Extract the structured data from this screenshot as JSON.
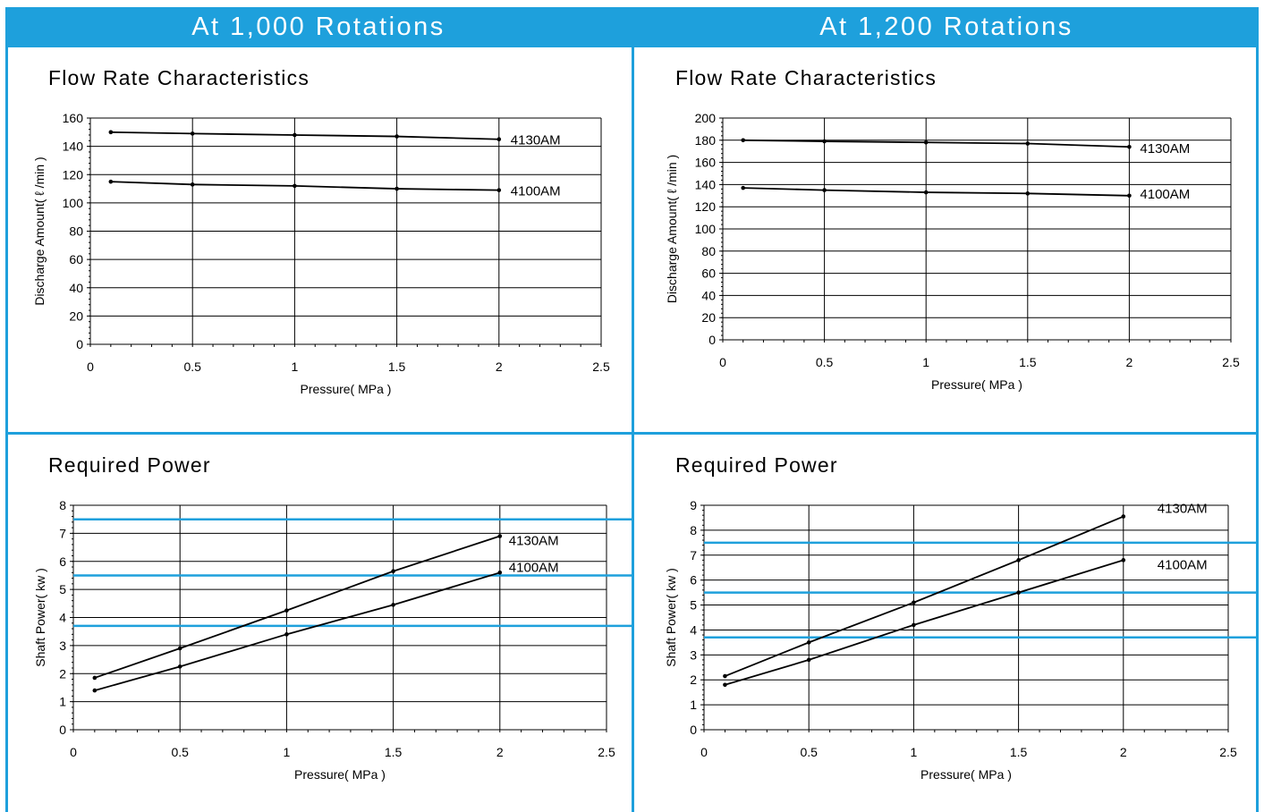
{
  "headers": {
    "left": "At 1,000 Rotations",
    "right": "At 1,200 Rotations"
  },
  "panels": [
    {
      "title": "Flow Rate Characteristics",
      "chart_data": {
        "type": "line",
        "title": "Flow Rate Characteristics",
        "xlabel": "Pressure( MPa )",
        "ylabel": "Discharge Amount( ℓ /min )",
        "xlim": [
          0,
          2.5
        ],
        "ylim": [
          0,
          160
        ],
        "xticks": [
          0,
          0.5,
          1,
          1.5,
          2,
          2.5
        ],
        "xtick_labels": [
          "0",
          "0.5",
          "1",
          "1.5",
          "2",
          "2.5"
        ],
        "yticks": [
          0,
          20,
          40,
          60,
          80,
          100,
          120,
          140,
          160
        ],
        "ytick_labels": [
          "0",
          "20",
          "40",
          "60",
          "80",
          "100",
          "120",
          "140",
          "160"
        ],
        "grid": true,
        "series": [
          {
            "name": "4130AM",
            "x": [
              0.1,
              0.5,
              1,
              1.5,
              2
            ],
            "values": [
              150,
              149,
              148,
              147,
              145
            ]
          },
          {
            "name": "4100AM",
            "x": [
              0.1,
              0.5,
              1,
              1.5,
              2
            ],
            "values": [
              115,
              113,
              112,
              110,
              109
            ]
          }
        ]
      }
    },
    {
      "title": "Flow Rate Characteristics",
      "chart_data": {
        "type": "line",
        "title": "Flow Rate Characteristics",
        "xlabel": "Pressure( MPa )",
        "ylabel": "Discharge Amount( ℓ /min )",
        "xlim": [
          0,
          2.5
        ],
        "ylim": [
          0,
          200
        ],
        "xticks": [
          0,
          0.5,
          1,
          1.5,
          2,
          2.5
        ],
        "xtick_labels": [
          "0",
          "0.5",
          "1",
          "1.5",
          "2",
          "2.5"
        ],
        "yticks": [
          0,
          20,
          40,
          60,
          80,
          100,
          120,
          140,
          160,
          180,
          200
        ],
        "ytick_labels": [
          "0",
          "20",
          "40",
          "60",
          "80",
          "100",
          "120",
          "140",
          "160",
          "180",
          "200"
        ],
        "grid": true,
        "series": [
          {
            "name": "4130AM",
            "x": [
              0.1,
              0.5,
              1,
              1.5,
              2
            ],
            "values": [
              180,
              179,
              178,
              177,
              174
            ]
          },
          {
            "name": "4100AM",
            "x": [
              0.1,
              0.5,
              1,
              1.5,
              2
            ],
            "values": [
              137,
              135,
              133,
              132,
              130
            ]
          }
        ]
      }
    },
    {
      "title": "Required Power",
      "chart_data": {
        "type": "line",
        "title": "Required Power",
        "xlabel": "Pressure( MPa )",
        "ylabel": "Shaft Power( kw )",
        "xlim": [
          0,
          2.5
        ],
        "ylim": [
          0,
          8
        ],
        "xticks": [
          0,
          0.5,
          1,
          1.5,
          2,
          2.5
        ],
        "xtick_labels": [
          "0",
          "0.5",
          "1",
          "1.5",
          "2",
          "2.5"
        ],
        "yticks": [
          0,
          1,
          2,
          3,
          4,
          5,
          6,
          7,
          8
        ],
        "ytick_labels": [
          "0",
          "1",
          "2",
          "3",
          "4",
          "5",
          "6",
          "7",
          "8"
        ],
        "grid": true,
        "reference_lines": [
          3.7,
          5.5,
          7.5
        ],
        "reference_color": "#1ea0dc",
        "series": [
          {
            "name": "4130AM",
            "x": [
              0.1,
              0.5,
              1,
              1.5,
              2
            ],
            "values": [
              1.85,
              2.9,
              4.25,
              5.65,
              6.9
            ]
          },
          {
            "name": "4100AM",
            "x": [
              0.1,
              0.5,
              1,
              1.5,
              2
            ],
            "values": [
              1.4,
              2.25,
              3.4,
              4.45,
              5.6
            ]
          }
        ]
      }
    },
    {
      "title": "Required Power",
      "chart_data": {
        "type": "line",
        "title": "Required Power",
        "xlabel": "Pressure( MPa )",
        "ylabel": "Shaft Power( kw )",
        "xlim": [
          0,
          2.5
        ],
        "ylim": [
          0,
          9
        ],
        "xticks": [
          0,
          0.5,
          1,
          1.5,
          2,
          2.5
        ],
        "xtick_labels": [
          "0",
          "0.5",
          "1",
          "1.5",
          "2",
          "2.5"
        ],
        "yticks": [
          0,
          1,
          2,
          3,
          4,
          5,
          6,
          7,
          8,
          9
        ],
        "ytick_labels": [
          "0",
          "1",
          "2",
          "3",
          "4",
          "5",
          "6",
          "7",
          "8",
          "9"
        ],
        "grid": true,
        "reference_lines": [
          3.7,
          5.5,
          7.5
        ],
        "reference_color": "#1ea0dc",
        "series": [
          {
            "name": "4130AM",
            "x": [
              0.1,
              0.5,
              1,
              1.5,
              2
            ],
            "values": [
              2.15,
              3.5,
              5.1,
              6.8,
              8.55
            ]
          },
          {
            "name": "4100AM",
            "x": [
              0.1,
              0.5,
              1,
              1.5,
              2
            ],
            "values": [
              1.8,
              2.8,
              4.2,
              5.5,
              6.8
            ]
          }
        ]
      }
    }
  ]
}
